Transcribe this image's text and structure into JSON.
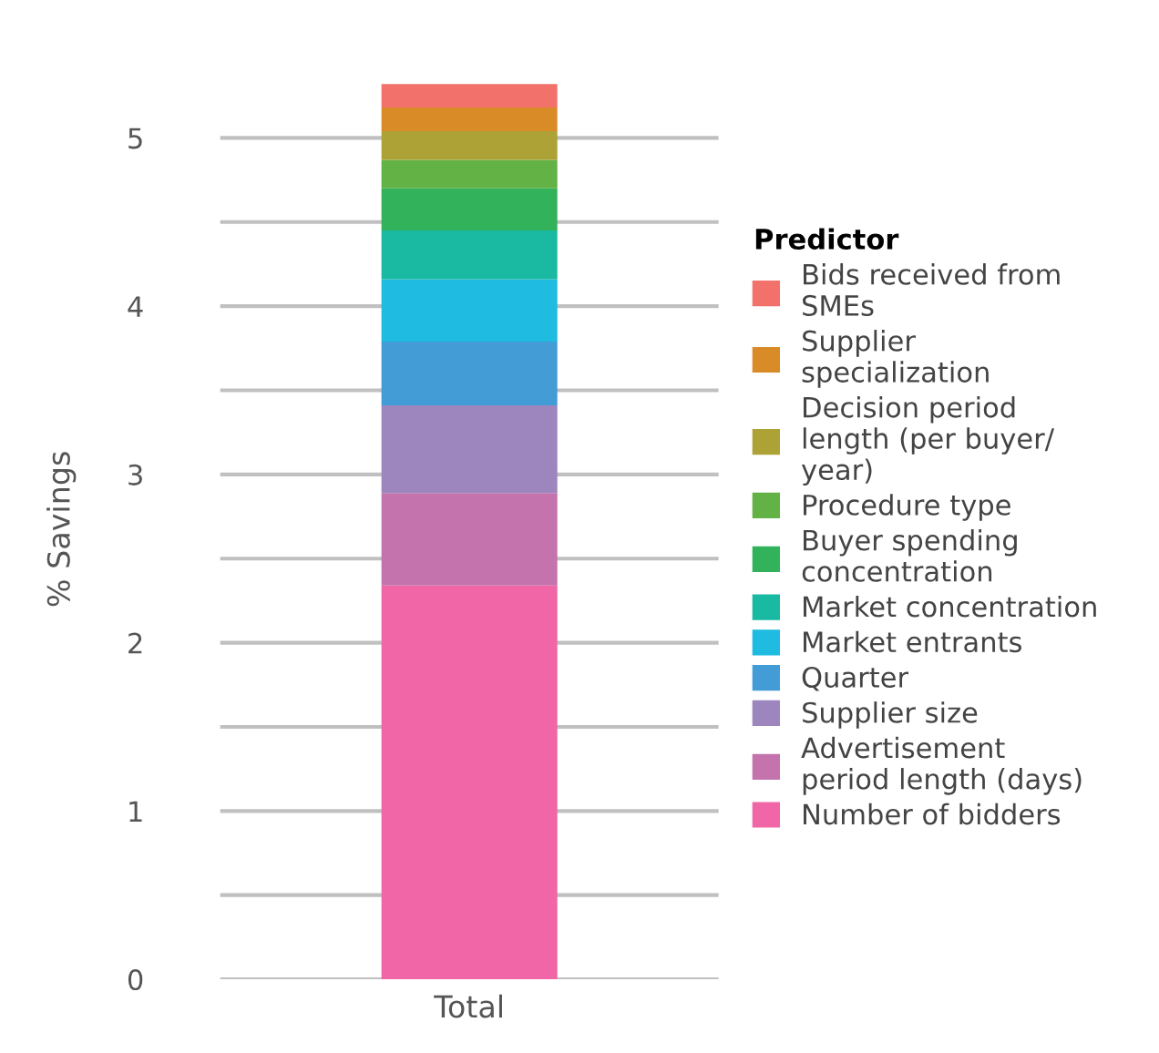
{
  "chart_data": {
    "type": "bar",
    "stacked": true,
    "categories": [
      "Total"
    ],
    "ylabel": "% Savings",
    "legend_title": "Predictor",
    "ylim": [
      0,
      5.35
    ],
    "yticks": [
      0,
      {
        "value": 0.5,
        "label": null
      },
      1,
      {
        "value": 1.5,
        "label": null
      },
      2,
      {
        "value": 2.5,
        "label": null
      },
      3,
      {
        "value": 3.5,
        "label": null
      },
      4,
      {
        "value": 4.5,
        "label": null
      },
      5
    ],
    "grid": "y",
    "legend": "right",
    "series": [
      {
        "name": "Number of bidders",
        "color": "#f066a6",
        "values": [
          2.34
        ]
      },
      {
        "name": "Advertisement period length (days)",
        "color": "#c473ac",
        "values": [
          0.55
        ]
      },
      {
        "name": "Supplier size",
        "color": "#9d86be",
        "values": [
          0.52
        ]
      },
      {
        "name": "Quarter",
        "color": "#439cd6",
        "values": [
          0.38
        ]
      },
      {
        "name": "Market entrants",
        "color": "#1fbbe0",
        "values": [
          0.37
        ]
      },
      {
        "name": "Market concentration",
        "color": "#19b9a2",
        "values": [
          0.29
        ]
      },
      {
        "name": "Buyer spending concentration",
        "color": "#32b35b",
        "values": [
          0.25
        ]
      },
      {
        "name": "Procedure type",
        "color": "#63b246",
        "values": [
          0.17
        ]
      },
      {
        "name": "Decision period length (per buyer/ year)",
        "color": "#ada236",
        "values": [
          0.17
        ]
      },
      {
        "name": "Supplier specialization",
        "color": "#d98b27",
        "values": [
          0.14
        ]
      },
      {
        "name": "Bids received from SMEs",
        "color": "#f2726b",
        "values": [
          0.14
        ]
      }
    ]
  }
}
